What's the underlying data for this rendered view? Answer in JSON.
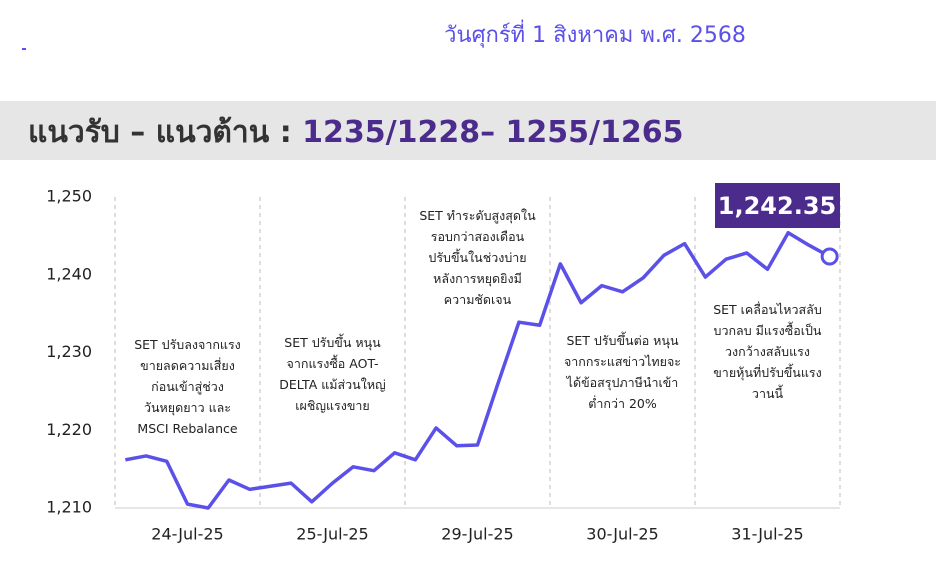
{
  "header": {
    "date": "วันศุกร์ที่ 1 สิงหาคม พ.ศ. 2568",
    "title": "แนวรับ – แนวต้าน : ",
    "levels": "1235/1228– 1255/1265"
  },
  "chart_data": {
    "type": "line",
    "categories": [
      null,
      null,
      null,
      "24-Jul-25",
      null,
      null,
      null,
      null,
      null,
      null,
      "25-Jul-25",
      null,
      null,
      null,
      null,
      null,
      null,
      "29-Jul-25",
      null,
      null,
      null,
      null,
      null,
      null,
      "30-Jul-25",
      null,
      null,
      null,
      null,
      null,
      null,
      "31-Jul-25",
      null,
      null,
      null
    ],
    "series": [
      {
        "name": "SET",
        "color": "#5b50e8",
        "values": [
          1216.2,
          1216.7,
          1216.0,
          1210.5,
          1210.0,
          1213.6,
          1212.4,
          1212.8,
          1213.2,
          1210.8,
          1213.2,
          1215.3,
          1214.8,
          1217.1,
          1216.2,
          1220.3,
          1218.0,
          1218.1,
          1226.1,
          1233.9,
          1233.5,
          1241.4,
          1236.4,
          1238.6,
          1237.8,
          1239.6,
          1242.5,
          1244.0,
          1239.7,
          1242.0,
          1242.8,
          1240.7,
          1245.4,
          1243.8,
          1242.35
        ],
        "value_labels": [
          null,
          null,
          null,
          null,
          null,
          null,
          null,
          null,
          null,
          null,
          null,
          null,
          null,
          null,
          null,
          null,
          null,
          null,
          null,
          null,
          null,
          null,
          null,
          null,
          null,
          null,
          null,
          null,
          null,
          null,
          null,
          null,
          null,
          null,
          "1,242.35"
        ]
      }
    ],
    "ylim": [
      1210,
      1250
    ],
    "yticks": [
      {
        "value": 1210,
        "label": "1,210"
      },
      {
        "value": 1220,
        "label": "1,220"
      },
      {
        "value": 1230,
        "label": "1,230"
      },
      {
        "value": 1240,
        "label": "1,240"
      },
      {
        "value": 1250,
        "label": "1,250"
      }
    ],
    "annotations": [
      {
        "lines": [
          "SET ปรับลงจากแรง",
          "ขายลดความเสี่ยง",
          "ก่อนเข้าสู่ช่วง",
          "วันหยุดยาว และ",
          "MSCI Rebalance"
        ]
      },
      {
        "lines": [
          "SET ปรับขึ้น หนุน",
          "จากแรงซื้อ AOT-",
          "DELTA แม้ส่วนใหญ่",
          "เผชิญแรงขาย"
        ]
      },
      {
        "lines": [
          "SET ทำระดับสูงสุดใน",
          "รอบกว่าสองเดือน",
          "ปรับขึ้นในช่วงบ่าย",
          "หลังการหยุดยิงมี",
          "ความชัดเจน"
        ]
      },
      {
        "lines": [
          "SET ปรับขึ้นต่อ หนุน",
          "จากกระแสข่าวไทยจะ",
          "ได้ข้อสรุปภาษีนำเข้า",
          "ต่ำกว่า 20%"
        ]
      },
      {
        "lines": [
          "SET เคลื่อนไหวสลับ",
          "บวกลบ มีแรงซื้อเป็น",
          "วงกว้างสลับแรง",
          "ขายหุ้นที่ปรับขึ้นแรง",
          "วานนี้"
        ]
      }
    ]
  }
}
